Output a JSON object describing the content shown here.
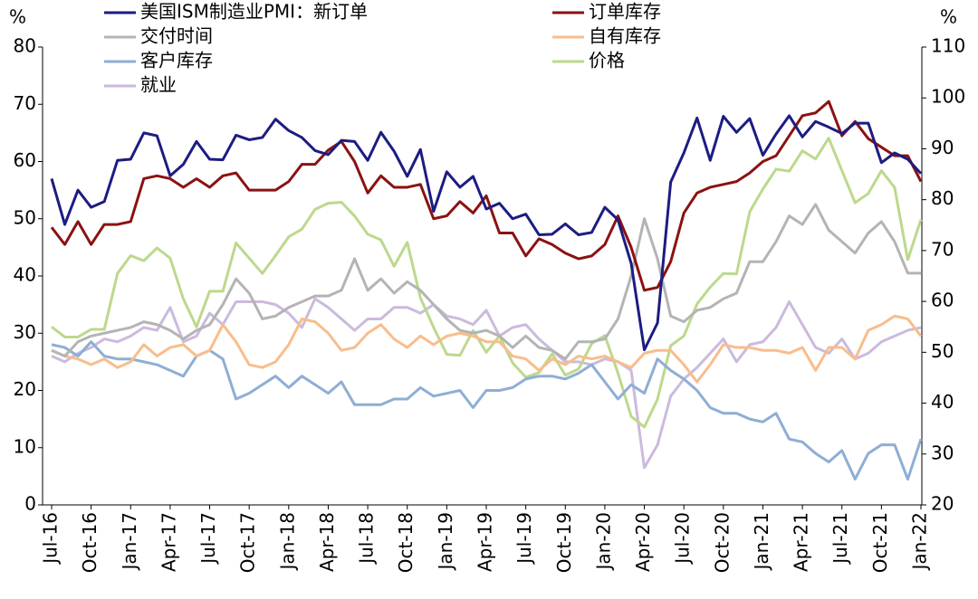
{
  "chart_data": {
    "type": "line",
    "ylabel": "%",
    "y2label": "%",
    "ylim": [
      0,
      80
    ],
    "yticks": [
      0,
      10,
      20,
      30,
      40,
      50,
      60,
      70,
      80
    ],
    "y2lim": [
      20,
      110
    ],
    "y2ticks": [
      20,
      30,
      40,
      50,
      60,
      70,
      80,
      90,
      100,
      110
    ],
    "grid": false,
    "categories": [
      "Jul-16",
      null,
      null,
      "Oct-16",
      null,
      null,
      "Jan-17",
      null,
      null,
      "Apr-17",
      null,
      null,
      "Jul-17",
      null,
      null,
      "Oct-17",
      null,
      null,
      "Jan-18",
      null,
      null,
      "Apr-18",
      null,
      null,
      "Jul-18",
      null,
      null,
      "Oct-18",
      null,
      null,
      "Jan-19",
      null,
      null,
      "Apr-19",
      null,
      null,
      "Jul-19",
      null,
      null,
      "Oct-19",
      null,
      null,
      "Jan-20",
      null,
      null,
      "Apr-20",
      null,
      null,
      "Jul-20",
      null,
      null,
      "Oct-20",
      null,
      null,
      "Jan-21",
      null,
      null,
      "Apr-21",
      null,
      null,
      "Jul-21",
      null,
      null,
      "Oct-21",
      null,
      null,
      "Jan-22"
    ],
    "series": [
      {
        "name": "美国ISM制造业PMI：新订单",
        "color": "#1c1c82",
        "values": [
          57,
          49,
          55,
          52,
          53,
          60.2,
          60.4,
          65,
          64.5,
          57.5,
          59.5,
          63.5,
          60.4,
          60.3,
          64.6,
          63.8,
          64.2,
          67.4,
          65.4,
          64.2,
          61.9,
          61.2,
          63.7,
          63.5,
          60.2,
          65.1,
          61.8,
          57.4,
          62.1,
          51.3,
          58.2,
          55.5,
          57.4,
          51.7,
          52.7,
          50,
          50.8,
          47.2,
          47.3,
          49.1,
          47.2,
          47.6,
          52,
          49.8,
          42.2,
          27.1,
          31.8,
          56.4,
          61.5,
          67.6,
          60.2,
          67.9,
          65.1,
          67.5,
          61.1,
          64.8,
          68,
          64.3,
          67,
          66,
          64.9,
          66.7,
          66.7,
          59.8,
          61.5,
          60.4,
          57.9
        ]
      },
      {
        "name": "订单库存",
        "color": "#8b1212",
        "values": [
          48.5,
          45.5,
          49.5,
          45.5,
          49,
          49,
          49.5,
          57,
          57.5,
          57,
          55.5,
          57,
          55.5,
          57.5,
          58,
          55,
          55,
          55,
          56.5,
          59.5,
          59.5,
          62,
          63.5,
          60,
          54.5,
          57.5,
          55.5,
          55.5,
          56,
          50,
          50.5,
          53,
          51,
          54,
          47.5,
          47.5,
          43.5,
          46.5,
          45.5,
          44,
          43,
          43.5,
          45.5,
          50.5,
          45,
          37.5,
          38,
          42.5,
          51,
          54.5,
          55.5,
          56,
          56.5,
          58,
          60,
          61,
          64.5,
          68,
          68.5,
          70.5,
          64.5,
          67,
          64,
          62.5,
          61,
          61,
          56.5
        ]
      },
      {
        "name": "交付时间",
        "color": "#b4b4b4",
        "values": [
          27,
          26,
          28.5,
          29.5,
          30,
          30.5,
          31,
          32,
          31.5,
          30.5,
          29,
          30.5,
          31.5,
          35,
          39.5,
          37,
          32.5,
          33,
          34.5,
          35.5,
          36.5,
          36.5,
          37.5,
          43,
          37.5,
          39.5,
          37,
          39,
          37.5,
          35,
          32.5,
          30.5,
          30,
          30.5,
          29.5,
          27.5,
          29.5,
          27.5,
          27,
          25.5,
          28.5,
          28.5,
          29,
          32.5,
          40,
          50,
          43,
          33,
          32,
          34,
          34.5,
          36,
          37,
          42.5,
          42.5,
          46,
          50.5,
          49,
          52.5,
          48,
          46,
          44,
          47.5,
          49.5,
          46,
          40.5,
          40.5
        ]
      },
      {
        "name": "自有库存",
        "color": "#f8bd8c",
        "values": [
          27,
          26,
          25.5,
          24.5,
          25.5,
          24,
          25,
          28,
          26,
          27.5,
          28,
          26,
          27,
          31.5,
          28.5,
          24.5,
          24,
          25,
          28,
          32.5,
          32,
          30,
          27,
          27.5,
          30,
          31.5,
          29,
          27.5,
          29.5,
          28,
          29.5,
          30,
          29.5,
          28.5,
          28.5,
          26,
          25.5,
          23.5,
          25.5,
          24.5,
          26,
          25.5,
          26,
          25,
          24,
          26.5,
          27,
          27,
          24.5,
          21.5,
          24.5,
          28,
          27.5,
          27.5,
          27,
          27,
          26.5,
          27.5,
          23.5,
          27.5,
          27.5,
          25.5,
          30.5,
          31.5,
          33,
          32.5,
          29.5
        ]
      },
      {
        "name": "客户库存",
        "color": "#8eaed4",
        "values": [
          28,
          27.5,
          26,
          28.5,
          26,
          25.5,
          25.5,
          25,
          24.5,
          23.5,
          22.5,
          26,
          27,
          25.5,
          18.5,
          19.5,
          21,
          22.5,
          20.5,
          22.5,
          21,
          19.5,
          21.5,
          17.5,
          17.5,
          17.5,
          18.5,
          18.5,
          20.5,
          19,
          19.5,
          20,
          17,
          20,
          20,
          20.5,
          22,
          22.5,
          22.5,
          22,
          23,
          24.5,
          21.5,
          18.5,
          21,
          19.5,
          25.5,
          23.5,
          22,
          20,
          17,
          16,
          16,
          15,
          14.5,
          16,
          11.5,
          11,
          9,
          7.5,
          9.5,
          4.5,
          9,
          10.5,
          10.5,
          4.5,
          11.5
        ]
      },
      {
        "name": "价格",
        "color": "#bcd98c",
        "axis": "y2",
        "values": [
          55,
          53,
          53,
          54.5,
          54.5,
          65.5,
          69,
          68,
          70.5,
          68.5,
          60.5,
          55,
          62,
          62,
          71.5,
          68.5,
          65.5,
          69,
          72.7,
          74.2,
          78.1,
          79.3,
          79.5,
          76.8,
          73.2,
          72.1,
          66.9,
          71.6,
          60.7,
          54.9,
          49.6,
          49.4,
          54.3,
          50,
          53.2,
          47.9,
          45.1,
          46,
          49.7,
          45.5,
          46.7,
          51.7,
          53.3,
          45.9,
          37.4,
          35.3,
          40.8,
          51.3,
          53.2,
          59.5,
          62.8,
          65.5,
          65.4,
          77.6,
          82.1,
          86,
          85.6,
          89.6,
          88,
          92.1,
          85.7,
          79.4,
          81.2,
          85.7,
          82.4,
          68.2,
          76.1
        ]
      },
      {
        "name": "就业",
        "color": "#cbbade",
        "values": [
          26,
          25,
          26.5,
          27.5,
          29,
          28.5,
          29.5,
          31,
          30.5,
          34.5,
          28.5,
          29.5,
          33.5,
          31.5,
          35.5,
          35.5,
          35.5,
          35,
          33.5,
          31,
          36,
          34.5,
          32.5,
          30.5,
          32.5,
          32.5,
          34.5,
          34.5,
          33.5,
          35,
          33,
          32.5,
          31.5,
          34,
          29.5,
          31,
          31.5,
          29,
          27,
          25,
          25,
          24.5,
          25.5,
          25,
          23.5,
          6.5,
          10.5,
          19,
          22,
          24,
          26.5,
          29,
          25,
          28,
          28.5,
          31,
          35.5,
          31.5,
          27.5,
          26.5,
          29,
          25.5,
          26.5,
          28.5,
          29.5,
          30.5,
          31
        ]
      }
    ]
  }
}
